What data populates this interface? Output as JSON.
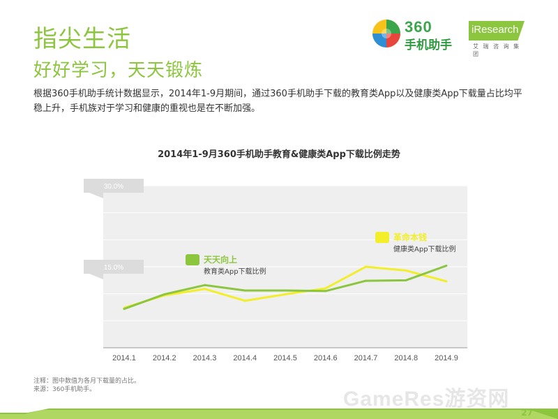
{
  "header": {
    "title": "指尖生活",
    "subtitle": "好好学习，天天锻炼"
  },
  "logos": {
    "brand_num": "360",
    "brand_cn": "手机助手",
    "iresearch": "iResearch",
    "iresearch_cn": "艾 瑞 咨 询 集 团"
  },
  "description": "根据360手机助手统计数据显示，2014年1-9月期间，通过360手机助手下载的教育类App以及健康类App下载量占比均平稳上升，手机族对于学习和健康的重视也是在不断加强。",
  "chart_data": {
    "type": "line",
    "title": "2014年1-9月360手机助手教育&健康类App下载比例走势",
    "categories": [
      "2014.1",
      "2014.2",
      "2014.3",
      "2014.4",
      "2014.5",
      "2014.6",
      "2014.7",
      "2014.8",
      "2014.9"
    ],
    "ylim": [
      0,
      30
    ],
    "yticks": [
      {
        "value": 30,
        "label": "30.0%"
      },
      {
        "value": 15,
        "label": "15.0%"
      }
    ],
    "series": [
      {
        "name": "天天向上",
        "desc": "教育类App下载比例",
        "color": "#8cc63f",
        "values": [
          7.2,
          9.9,
          11.6,
          10.6,
          10.6,
          10.5,
          12.4,
          12.5,
          15.2
        ]
      },
      {
        "name": "革命本钱",
        "desc": "健康类App下载比例",
        "color": "#f2ee2a",
        "values": [
          7.4,
          9.7,
          10.9,
          8.7,
          9.9,
          11.0,
          15.0,
          14.3,
          12.3
        ]
      }
    ]
  },
  "notes": {
    "note1": "注释：图中数值为各月下载量的占比。",
    "note2": "来源：360手机助手。"
  },
  "watermark": "GameRes游资网",
  "page_number": "27",
  "colors": {
    "accent": "#8cc63f",
    "secondary": "#f2ee2a"
  }
}
